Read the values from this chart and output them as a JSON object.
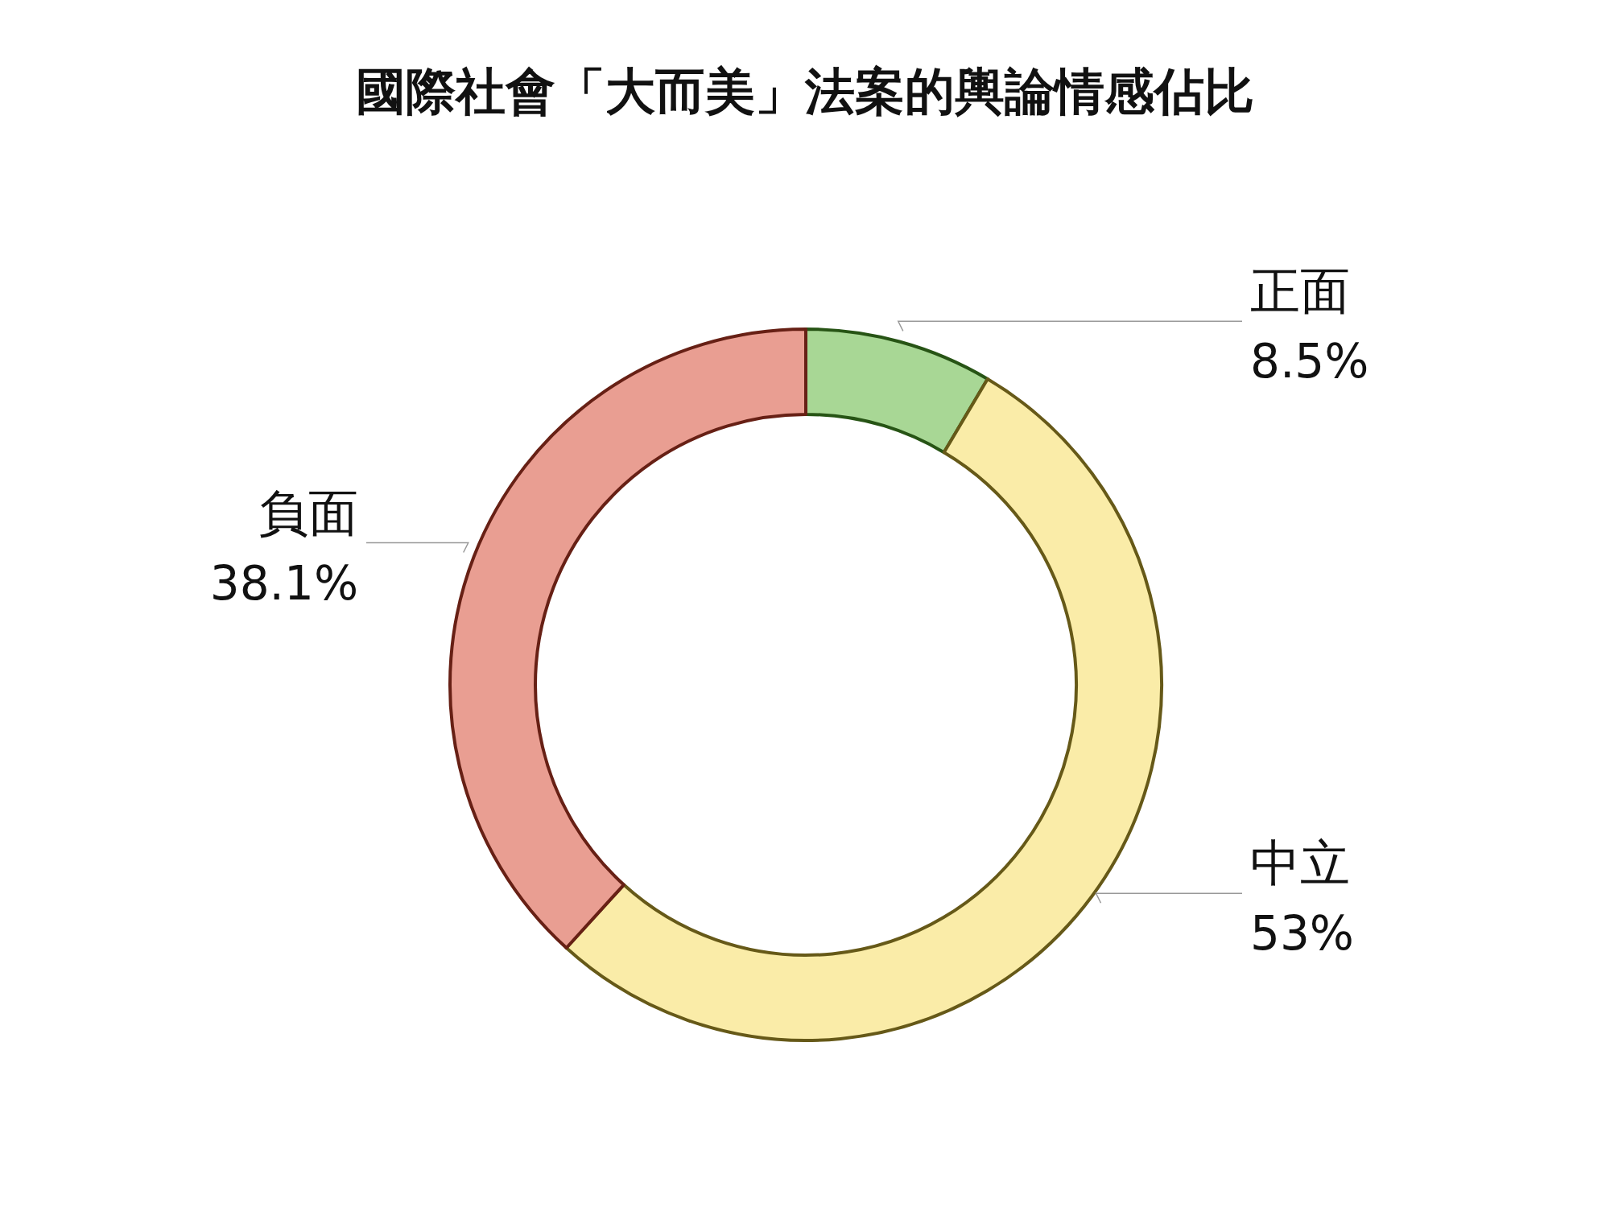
{
  "chart_data": {
    "type": "donut",
    "title": "國際社會「大而美」法案的輿論情感佔比",
    "categories": [
      "正面",
      "中立",
      "負面"
    ],
    "values": [
      8.5,
      53,
      38.1
    ],
    "value_labels": [
      "8.5%",
      "53%",
      "38.1%"
    ],
    "colors": [
      "#a8d795",
      "#faeca8",
      "#e99e92"
    ]
  }
}
